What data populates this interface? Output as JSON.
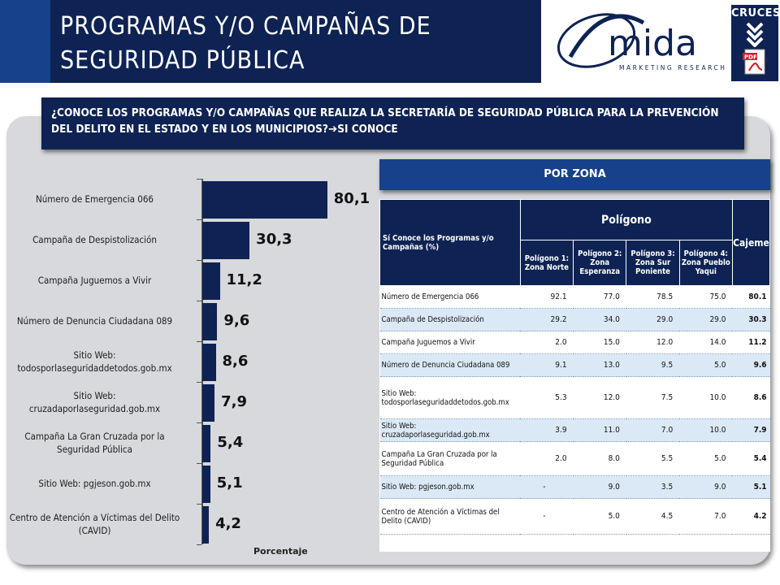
{
  "header": {
    "title": "PROGRAMAS Y/O CAMPAÑAS DE SEGURIDAD PÚBLICA",
    "brand_name": "mida",
    "brand_tagline": "MARKETING RESEARCH",
    "cruces_label": "CRUCES"
  },
  "question": {
    "text": "¿CONOCE LOS PROGRAMAS Y/O CAMPAÑAS QUE REALIZA LA SECRETARÍA DE SEGURIDAD PÚBLICA PARA LA PREVENCIÓN DEL DELITO EN EL ESTADO Y EN LOS MUNICIPIOS?",
    "answer": "SI CONOCE"
  },
  "chart_data": {
    "type": "bar",
    "orientation": "horizontal",
    "categories": [
      "Número de Emergencia 066",
      "Campaña de Despistolización",
      "Campaña Juguemos a Vivir",
      "Número de Denuncia Ciudadana 089",
      "Sitio Web: todosporlaseguridaddetodos.gob.mx",
      "Sitio Web: cruzadaporlaseguridad.gob.mx",
      "Campaña La Gran Cruzada por la Seguridad Pública",
      "Sitio Web: pgjeson.gob.mx",
      "Centro de Atención a Víctimas del Delito (CAVID)"
    ],
    "category_lines": [
      [
        "Número de Emergencia 066"
      ],
      [
        "Campaña de Despistolización"
      ],
      [
        "Campaña Juguemos a Vivir"
      ],
      [
        "Número de Denuncia Ciudadana 089"
      ],
      [
        "Sitio Web:",
        "todosporlaseguridaddetodos.gob.mx"
      ],
      [
        "Sitio Web:",
        "cruzadaporlaseguridad.gob.mx"
      ],
      [
        "Campaña La Gran Cruzada por la",
        "Seguridad Pública"
      ],
      [
        "Sitio Web: pgjeson.gob.mx"
      ],
      [
        "Centro de Atención a Víctimas del Delito",
        "(CAVID)"
      ]
    ],
    "values": [
      80.1,
      30.3,
      11.2,
      9.6,
      8.6,
      7.9,
      5.4,
      5.1,
      4.2
    ],
    "value_labels": [
      "80,1",
      "30,3",
      "11,2",
      "9,6",
      "8,6",
      "7,9",
      "5,4",
      "5,1",
      "4,2"
    ],
    "xlabel": "Porcentaje",
    "xlim": [
      0,
      100
    ],
    "bar_color": "#0e2353"
  },
  "zona": {
    "header": "POR ZONA",
    "table_title": "Sí Conoce los Programas y/o Campañas (%)",
    "group_header": "Polígono",
    "columns": [
      "Polígono 1: Zona Norte",
      "Polígono 2: Zona Esperanza",
      "Polígono 3: Zona Sur Poniente",
      "Polígono 4: Zona Pueblo Yaqui"
    ],
    "total_column": "Cajeme",
    "rows": [
      {
        "name": "Número de Emergencia 066",
        "values": [
          "92.1",
          "77.0",
          "78.5",
          "75.0"
        ],
        "total": "80.1"
      },
      {
        "name": "Campaña de Despistolización",
        "values": [
          "29.2",
          "34.0",
          "29.0",
          "29.0"
        ],
        "total": "30.3"
      },
      {
        "name": "Campaña Juguemos a Vivir",
        "values": [
          "2.0",
          "15.0",
          "12.0",
          "14.0"
        ],
        "total": "11.2"
      },
      {
        "name": "Número de Denuncia Ciudadana 089",
        "values": [
          "9.1",
          "13.0",
          "9.5",
          "5.0"
        ],
        "total": "9.6"
      },
      {
        "name": "Sitio Web: todosporlaseguridaddetodos.gob.mx",
        "values": [
          "5.3",
          "12.0",
          "7.5",
          "10.0"
        ],
        "total": "8.6"
      },
      {
        "name": "Sitio Web: cruzadaporlaseguridad.gob.mx",
        "values": [
          "3.9",
          "11.0",
          "7.0",
          "10.0"
        ],
        "total": "7.9"
      },
      {
        "name": "Campaña La Gran Cruzada por la Seguridad Pública",
        "values": [
          "2.0",
          "8.0",
          "5.5",
          "5.0"
        ],
        "total": "5.4"
      },
      {
        "name": "Sitio Web: pgjeson.gob.mx",
        "values": [
          "-",
          "9.0",
          "3.5",
          "9.0"
        ],
        "total": "5.1"
      },
      {
        "name": "Centro de Atención a Víctimas del Delito (CAVID)",
        "values": [
          "-",
          "5.0",
          "4.5",
          "7.0"
        ],
        "total": "4.2"
      }
    ]
  },
  "colors": {
    "navy": "#0e2353",
    "blue": "#17418a",
    "row_alt": "#dbe9f6",
    "panel": "#d8d9dc",
    "pdf_red": "#d2232a"
  }
}
